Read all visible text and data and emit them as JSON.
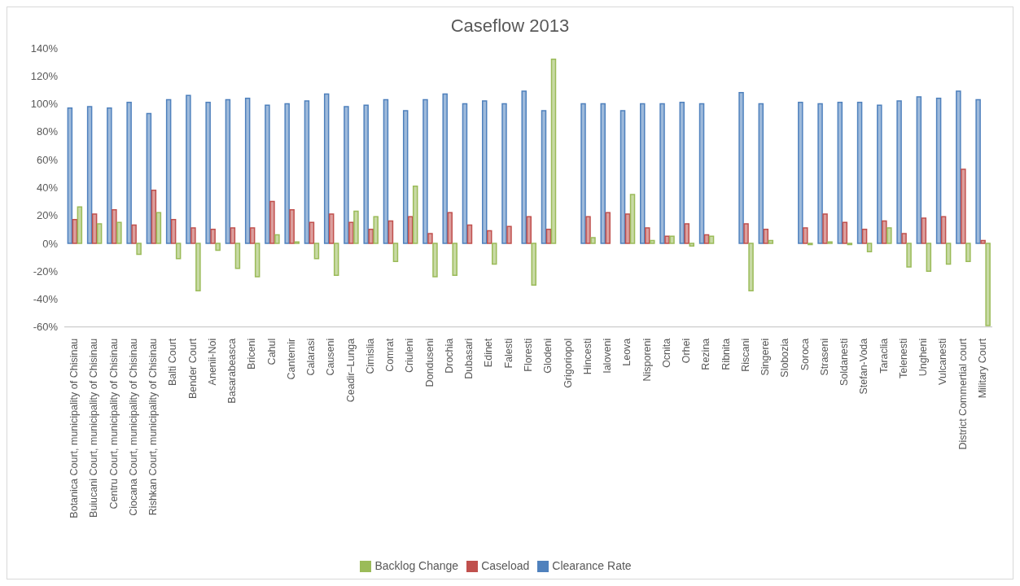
{
  "chart_data": {
    "type": "bar",
    "title": "Caseflow 2013",
    "categories": [
      "Botanica Court, municipality of Chisinau",
      "Buiucani Court, municipality of Chisinau",
      "Centru Court, municipality of Chisinau",
      "Ciocana Court, municipality of Chisinau",
      "Rishkan Court, municipality of Chisinau",
      "Balti Court",
      "Bender Court",
      "Anenii-Noi",
      "Basarabeasca",
      "Briceni",
      "Cahul",
      "Cantemir",
      "Calarasi",
      "Causeni",
      "Ceadir–Lunga",
      "Cimislia",
      "Comrat",
      "Criuleni",
      "Donduseni",
      "Drochia",
      "Dubasari",
      "Edinet",
      "Falesti",
      "Floresti",
      "Glodeni",
      "Grigoriopol",
      "Hincesti",
      "Ialoveni",
      "Leova",
      "Nisporeni",
      "Ocnita",
      "Orhei",
      "Rezina",
      "Ribnita",
      "Riscani",
      "Singerei",
      "Slobozia",
      "Soroca",
      "Straseni",
      "Soldanesti",
      "Stefan-Voda",
      "Taraclia",
      "Telenesti",
      "Ungheni",
      "Vulcanesti",
      "District Commertial court",
      "Military Court"
    ],
    "series": [
      {
        "name": "Clearance Rate",
        "color": "#4f81bd",
        "values": [
          97,
          98,
          97,
          101,
          93,
          103,
          106,
          101,
          103,
          104,
          99,
          100,
          102,
          107,
          98,
          99,
          103,
          95,
          103,
          107,
          100,
          102,
          100,
          109,
          95,
          0,
          100,
          100,
          95,
          100,
          100,
          101,
          100,
          0,
          108,
          100,
          0,
          101,
          100,
          101,
          101,
          99,
          102,
          105,
          104,
          109,
          103
        ]
      },
      {
        "name": "Caseload",
        "color": "#c0504d",
        "values": [
          17,
          21,
          24,
          13,
          38,
          17,
          11,
          10,
          11,
          11,
          30,
          24,
          15,
          21,
          15,
          10,
          16,
          19,
          7,
          22,
          13,
          9,
          12,
          19,
          10,
          0,
          19,
          22,
          21,
          11,
          5,
          14,
          6,
          0,
          14,
          10,
          0,
          11,
          21,
          15,
          10,
          16,
          7,
          18,
          19,
          53,
          2
        ]
      },
      {
        "name": "Backlog Change",
        "color": "#9bbb59",
        "values": [
          26,
          14,
          15,
          -8,
          22,
          -11,
          -34,
          -5,
          -18,
          -24,
          6,
          1,
          -11,
          -23,
          23,
          19,
          -13,
          41,
          -24,
          -23,
          0,
          -15,
          0,
          -30,
          132,
          0,
          4,
          0,
          35,
          2,
          5,
          -2,
          5,
          0,
          -34,
          2,
          0,
          -1,
          1,
          -1,
          -6,
          11,
          -17,
          -20,
          -15,
          -13,
          -59
        ]
      }
    ],
    "ylim": [
      -60,
      140
    ],
    "yticks": [
      {
        "value": -60,
        "label": "-60%"
      },
      {
        "value": -40,
        "label": "-40%"
      },
      {
        "value": -20,
        "label": "-20%"
      },
      {
        "value": 0,
        "label": "0%"
      },
      {
        "value": 20,
        "label": "20%"
      },
      {
        "value": 40,
        "label": "40%"
      },
      {
        "value": 60,
        "label": "60%"
      },
      {
        "value": 80,
        "label": "80%"
      },
      {
        "value": 100,
        "label": "100%"
      },
      {
        "value": 120,
        "label": "120%"
      },
      {
        "value": 140,
        "label": "140%"
      }
    ],
    "legend": "bottom"
  }
}
